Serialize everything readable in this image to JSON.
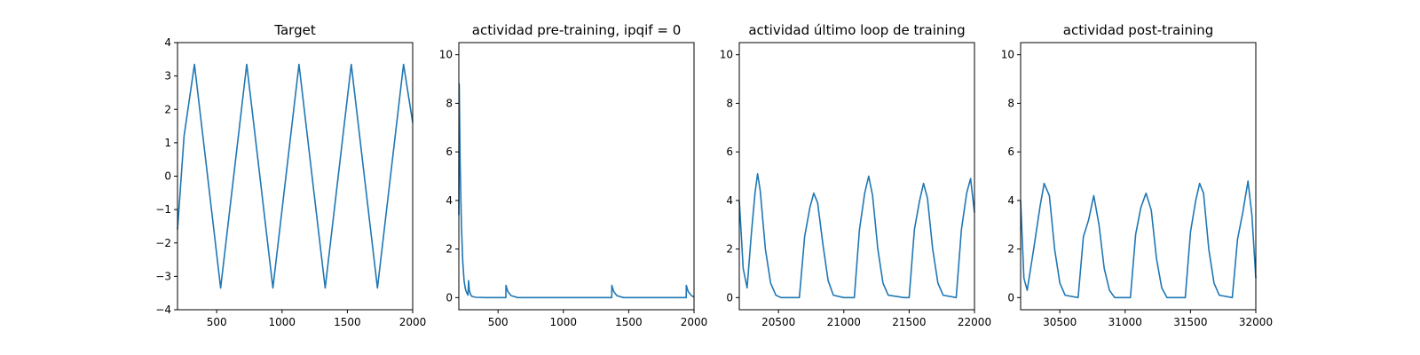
{
  "chart_data": [
    {
      "type": "line",
      "title": "Target",
      "xlabel": "",
      "ylabel": "",
      "xlim": [
        200,
        2000
      ],
      "ylim": [
        -4,
        4
      ],
      "xticks": [
        "500",
        "1000",
        "1500",
        "2000"
      ],
      "yticks": [
        "−4",
        "−3",
        "−2",
        "−1",
        "0",
        "1",
        "2",
        "3",
        "4"
      ],
      "series": [
        {
          "color": "#1f77b4",
          "x": [
            200,
            250,
            330,
            430,
            530,
            630,
            730,
            830,
            930,
            1030,
            1130,
            1230,
            1330,
            1430,
            1530,
            1630,
            1730,
            1830,
            1930,
            2000
          ],
          "y": [
            -1.6,
            1.2,
            3.35,
            0.0,
            -3.35,
            0.0,
            3.35,
            0.0,
            -3.35,
            0.0,
            3.35,
            0.0,
            -3.35,
            0.0,
            3.35,
            0.0,
            -3.35,
            0.0,
            3.35,
            1.6
          ]
        }
      ]
    },
    {
      "type": "line",
      "title": "actividad pre-training, ipqif = 0",
      "xlabel": "",
      "ylabel": "",
      "xlim": [
        200,
        2000
      ],
      "ylim": [
        -0.5,
        10.5
      ],
      "xticks": [
        "500",
        "1000",
        "1500",
        "2000"
      ],
      "yticks": [
        "0",
        "2",
        "4",
        "6",
        "8",
        "10"
      ],
      "series": [
        {
          "color": "#1f77b4",
          "x": [
            200,
            203,
            210,
            220,
            230,
            240,
            250,
            260,
            270,
            275,
            280,
            290,
            300,
            330,
            400,
            560,
            561,
            575,
            600,
            650,
            1370,
            1371,
            1385,
            1410,
            1460,
            1940,
            1941,
            1955,
            1980,
            2000
          ],
          "y": [
            3.4,
            8.8,
            5.5,
            3.0,
            1.5,
            0.7,
            0.35,
            0.2,
            0.1,
            0.7,
            0.3,
            0.12,
            0.05,
            0.01,
            0.0,
            0.0,
            0.5,
            0.25,
            0.08,
            0.0,
            0.0,
            0.5,
            0.25,
            0.08,
            0.0,
            0.0,
            0.5,
            0.25,
            0.08,
            0.02
          ]
        }
      ]
    },
    {
      "type": "line",
      "title": "actividad último loop de training",
      "xlabel": "",
      "ylabel": "",
      "xlim": [
        20200,
        22000
      ],
      "ylim": [
        -0.5,
        10.5
      ],
      "xticks": [
        "20500",
        "21000",
        "21500",
        "22000"
      ],
      "yticks": [
        "0",
        "2",
        "4",
        "6",
        "8",
        "10"
      ],
      "series": [
        {
          "color": "#1f77b4",
          "x": [
            20200,
            20230,
            20260,
            20290,
            20320,
            20340,
            20360,
            20400,
            20440,
            20480,
            20520,
            20580,
            20660,
            20700,
            20740,
            20770,
            20800,
            20840,
            20880,
            20920,
            21000,
            21080,
            21120,
            21160,
            21190,
            21220,
            21260,
            21300,
            21340,
            21460,
            21500,
            21540,
            21580,
            21610,
            21640,
            21680,
            21720,
            21760,
            21860,
            21900,
            21940,
            21970,
            22000
          ],
          "y": [
            4.0,
            1.2,
            0.4,
            2.5,
            4.3,
            5.1,
            4.4,
            2.0,
            0.6,
            0.1,
            0.0,
            0.0,
            0.0,
            2.5,
            3.7,
            4.3,
            3.9,
            2.2,
            0.7,
            0.1,
            0.0,
            0.0,
            2.8,
            4.3,
            5.0,
            4.2,
            2.0,
            0.6,
            0.1,
            0.0,
            0.0,
            2.8,
            4.0,
            4.7,
            4.1,
            2.0,
            0.6,
            0.1,
            0.0,
            2.8,
            4.3,
            4.9,
            3.5
          ]
        }
      ]
    },
    {
      "type": "line",
      "title": "actividad post-training",
      "xlabel": "",
      "ylabel": "",
      "xlim": [
        30200,
        32000
      ],
      "ylim": [
        -0.5,
        10.5
      ],
      "xticks": [
        "30500",
        "31000",
        "31500",
        "32000"
      ],
      "yticks": [
        "0",
        "2",
        "4",
        "6",
        "8",
        "10"
      ],
      "series": [
        {
          "color": "#1f77b4",
          "x": [
            30200,
            30225,
            30250,
            30300,
            30350,
            30380,
            30420,
            30460,
            30500,
            30540,
            30640,
            30680,
            30720,
            30760,
            30800,
            30840,
            30880,
            30920,
            31040,
            31080,
            31120,
            31160,
            31200,
            31240,
            31280,
            31320,
            31460,
            31500,
            31540,
            31570,
            31600,
            31640,
            31680,
            31720,
            31820,
            31860,
            31900,
            31940,
            31970,
            32000
          ],
          "y": [
            4.0,
            0.8,
            0.3,
            2.0,
            3.8,
            4.7,
            4.2,
            2.0,
            0.6,
            0.1,
            0.0,
            2.5,
            3.2,
            4.2,
            3.0,
            1.2,
            0.3,
            0.0,
            0.0,
            2.6,
            3.7,
            4.3,
            3.6,
            1.6,
            0.4,
            0.0,
            0.0,
            2.7,
            4.0,
            4.7,
            4.3,
            2.0,
            0.6,
            0.1,
            0.0,
            2.4,
            3.5,
            4.8,
            3.4,
            0.8
          ]
        }
      ]
    }
  ]
}
